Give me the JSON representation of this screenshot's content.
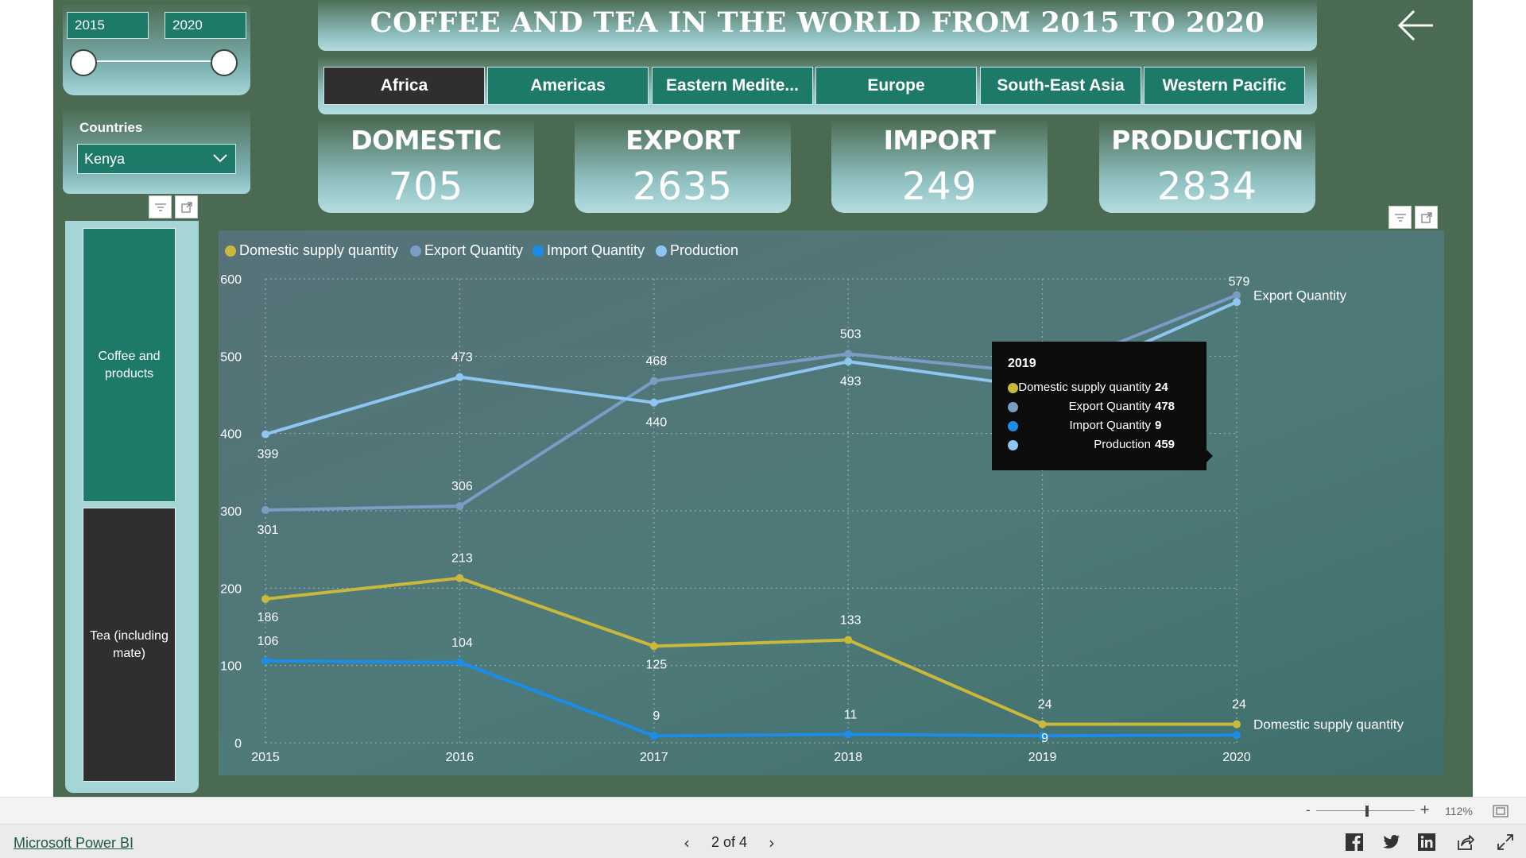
{
  "year_slicer": {
    "start": "2015",
    "end": "2020"
  },
  "country_slicer": {
    "title": "Countries",
    "selected": "Kenya"
  },
  "categories": [
    {
      "label": "Coffee and products",
      "active": false
    },
    {
      "label": "Tea (including mate)",
      "active": true
    }
  ],
  "title": "COFFEE AND TEA IN THE WORLD FROM 2015 TO 2020",
  "regions": [
    "Africa",
    "Americas",
    "Eastern Medite...",
    "Europe",
    "South-East Asia",
    "Western Pacific"
  ],
  "active_region": "Africa",
  "kpis": [
    {
      "label": "DOMESTIC",
      "value": "705"
    },
    {
      "label": "EXPORT",
      "value": "2635"
    },
    {
      "label": "IMPORT",
      "value": "249"
    },
    {
      "label": "PRODUCTION",
      "value": "2834"
    }
  ],
  "chart_data": {
    "type": "line",
    "x": [
      "2015",
      "2016",
      "2017",
      "2018",
      "2019",
      "2020"
    ],
    "ylim": [
      0,
      600
    ],
    "yticks": [
      0,
      100,
      200,
      300,
      400,
      500,
      600
    ],
    "grid": true,
    "legend_position": "top-left",
    "series": [
      {
        "name": "Domestic supply quantity",
        "color": "#c9b83a",
        "values": [
          186,
          213,
          125,
          133,
          24,
          24
        ],
        "labels": [
          "186",
          "213",
          "125",
          "133",
          "24",
          "24"
        ],
        "end_label": "Domestic supply quantity"
      },
      {
        "name": "Export Quantity",
        "color": "#7b9cc4",
        "values": [
          301,
          306,
          468,
          503,
          478,
          579
        ],
        "labels": [
          "301",
          "306",
          "468",
          "503",
          "",
          "579"
        ],
        "end_label": "Export Quantity"
      },
      {
        "name": "Import Quantity",
        "color": "#1b8de8",
        "values": [
          106,
          104,
          9,
          11,
          9,
          10
        ],
        "labels": [
          "106",
          "104",
          "9",
          "11",
          "9",
          ""
        ],
        "end_label": ""
      },
      {
        "name": "Production",
        "color": "#8ec6f2",
        "values": [
          399,
          473,
          440,
          493,
          459,
          570
        ],
        "labels": [
          "399",
          "473",
          "440",
          "493",
          "",
          ""
        ],
        "end_label": ""
      }
    ]
  },
  "tooltip": {
    "title": "2019",
    "rows": [
      {
        "label": "Domestic supply quantity",
        "value": "24",
        "color": "#c9b83a"
      },
      {
        "label": "Export Quantity",
        "value": "478",
        "color": "#7b9cc4"
      },
      {
        "label": "Import Quantity",
        "value": "9",
        "color": "#1b8de8"
      },
      {
        "label": "Production",
        "value": "459",
        "color": "#8ec6f2"
      }
    ]
  },
  "footer": {
    "brand": "Microsoft Power BI",
    "page": "2 of 4",
    "zoom": "112%",
    "zoom_minus": "-",
    "zoom_plus": "+"
  }
}
